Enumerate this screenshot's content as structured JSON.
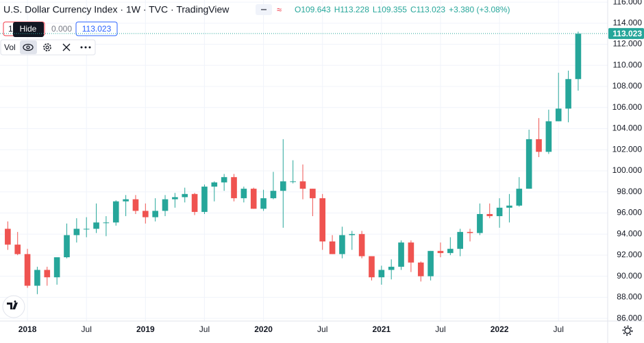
{
  "chart_data": {
    "type": "candlestick",
    "title": "U.S. Dollar Currency Index · 1W · TVC · TradingView",
    "legend": {
      "open": "O109.643",
      "high": "H113.228",
      "low": "L109.355",
      "close": "C113.023",
      "change": "+3.380 (+3.08%)"
    },
    "indicator": {
      "input": "1",
      "value": "0.000",
      "name": "Vol",
      "tooltip": "Hide"
    },
    "last_price": 113.023,
    "up_color": "#26a69a",
    "down_color": "#ef5350",
    "grid": true,
    "x": [
      "2017-11",
      "2017-12",
      "2018-01",
      "2018-02",
      "2018-03",
      "2018-04",
      "2018-05",
      "2018-06",
      "2018-07",
      "2018-08",
      "2018-09",
      "2018-10",
      "2018-11",
      "2018-12",
      "2019-01",
      "2019-02",
      "2019-03",
      "2019-04",
      "2019-05",
      "2019-06",
      "2019-07",
      "2019-08",
      "2019-09",
      "2019-10",
      "2019-11",
      "2019-12",
      "2020-01",
      "2020-02",
      "2020-03",
      "2020-04",
      "2020-05",
      "2020-06",
      "2020-07",
      "2020-08",
      "2020-09",
      "2020-10",
      "2020-11",
      "2020-12",
      "2021-01",
      "2021-02",
      "2021-03",
      "2021-04",
      "2021-05",
      "2021-06",
      "2021-07",
      "2021-08",
      "2021-09",
      "2021-10",
      "2021-11",
      "2021-12",
      "2022-01",
      "2022-02",
      "2022-03",
      "2022-04",
      "2022-05",
      "2022-06",
      "2022-07",
      "2022-08",
      "2022-09"
    ],
    "open": [
      94.5,
      93.0,
      92.1,
      89.1,
      90.6,
      89.9,
      91.8,
      93.9,
      94.5,
      94.5,
      95.1,
      95.1,
      97.1,
      97.3,
      96.2,
      95.6,
      96.2,
      97.3,
      97.5,
      97.8,
      96.1,
      98.5,
      98.9,
      99.4,
      97.4,
      98.3,
      96.4,
      97.4,
      98.1,
      99.0,
      99.0,
      98.3,
      97.4,
      93.3,
      92.1,
      93.9,
      94.0,
      91.9,
      89.9,
      90.6,
      90.9,
      93.2,
      91.3,
      90.0,
      92.4,
      92.2,
      92.6,
      94.2,
      94.1,
      95.9,
      95.7,
      96.5,
      96.7,
      98.3,
      103.0,
      101.8,
      104.7,
      105.9,
      108.7
    ],
    "high": [
      95.2,
      94.2,
      92.6,
      90.9,
      90.9,
      91.8,
      95.0,
      95.5,
      95.6,
      96.9,
      95.7,
      97.2,
      97.7,
      97.7,
      96.9,
      97.4,
      97.7,
      97.9,
      98.4,
      97.9,
      98.7,
      99.0,
      99.7,
      99.7,
      98.5,
      98.4,
      98.2,
      99.9,
      103.0,
      101.0,
      100.6,
      98.3,
      97.8,
      93.9,
      94.7,
      94.3,
      94.3,
      91.9,
      91.0,
      91.6,
      93.4,
      93.4,
      91.4,
      92.4,
      93.2,
      93.7,
      94.5,
      94.5,
      96.9,
      96.9,
      97.4,
      97.8,
      99.4,
      103.9,
      105.0,
      105.8,
      109.3,
      109.5,
      113.2
    ],
    "low": [
      92.5,
      92.0,
      88.9,
      88.3,
      89.1,
      89.2,
      91.7,
      93.2,
      93.7,
      94.1,
      93.8,
      94.8,
      95.7,
      95.9,
      95.0,
      95.2,
      95.7,
      96.5,
      97.0,
      95.8,
      95.9,
      97.1,
      98.1,
      97.1,
      97.0,
      96.4,
      96.2,
      97.3,
      94.6,
      98.8,
      97.3,
      95.7,
      92.5,
      92.1,
      91.7,
      92.5,
      91.7,
      89.6,
      89.2,
      89.7,
      90.6,
      90.4,
      89.5,
      89.6,
      91.8,
      92.0,
      91.9,
      93.3,
      93.9,
      95.5,
      94.6,
      95.1,
      96.6,
      98.3,
      101.3,
      101.6,
      104.7,
      104.6,
      107.6
    ],
    "close": [
      93.0,
      92.1,
      89.1,
      90.6,
      89.9,
      91.8,
      93.9,
      94.5,
      94.5,
      95.1,
      95.1,
      97.1,
      97.3,
      96.2,
      95.6,
      96.2,
      97.3,
      97.5,
      97.8,
      96.1,
      98.5,
      98.9,
      99.4,
      97.4,
      98.3,
      96.4,
      97.4,
      98.1,
      99.0,
      99.0,
      98.3,
      97.4,
      93.3,
      92.1,
      93.9,
      94.0,
      91.9,
      89.9,
      90.6,
      90.9,
      93.2,
      91.3,
      90.0,
      92.4,
      92.2,
      92.6,
      94.2,
      94.1,
      95.9,
      95.7,
      96.5,
      96.7,
      98.3,
      103.0,
      101.8,
      104.7,
      105.9,
      108.7,
      113.0
    ],
    "xlim": [
      "2017-10",
      "2022-12"
    ],
    "xticks": [
      {
        "value": "2018-01",
        "label": "2018"
      },
      {
        "value": "2018-07",
        "label": "Jul"
      },
      {
        "value": "2019-01",
        "label": "2019"
      },
      {
        "value": "2019-07",
        "label": "Jul"
      },
      {
        "value": "2020-01",
        "label": "2020"
      },
      {
        "value": "2020-07",
        "label": "Jul"
      },
      {
        "value": "2021-01",
        "label": "2021"
      },
      {
        "value": "2021-07",
        "label": "Jul"
      },
      {
        "value": "2022-01",
        "label": "2022"
      },
      {
        "value": "2022-07",
        "label": "Jul"
      }
    ],
    "ylim": [
      85.75,
      116.2
    ],
    "yticks": [
      {
        "value": 86,
        "label": "86.000"
      },
      {
        "value": 88,
        "label": "88.000"
      },
      {
        "value": 90,
        "label": "90.000"
      },
      {
        "value": 92,
        "label": "92.000"
      },
      {
        "value": 94,
        "label": "94.000"
      },
      {
        "value": 96,
        "label": "96.000"
      },
      {
        "value": 98,
        "label": "98.000"
      },
      {
        "value": 100,
        "label": "100.000"
      },
      {
        "value": 102,
        "label": "102.000"
      },
      {
        "value": 104,
        "label": "104.000"
      },
      {
        "value": 106,
        "label": "106.000"
      },
      {
        "value": 108,
        "label": "108.000"
      },
      {
        "value": 110,
        "label": "110.000"
      },
      {
        "value": 112,
        "label": "112.000"
      },
      {
        "value": 114,
        "label": "114.000"
      },
      {
        "value": 116,
        "label": "116.000"
      }
    ]
  }
}
